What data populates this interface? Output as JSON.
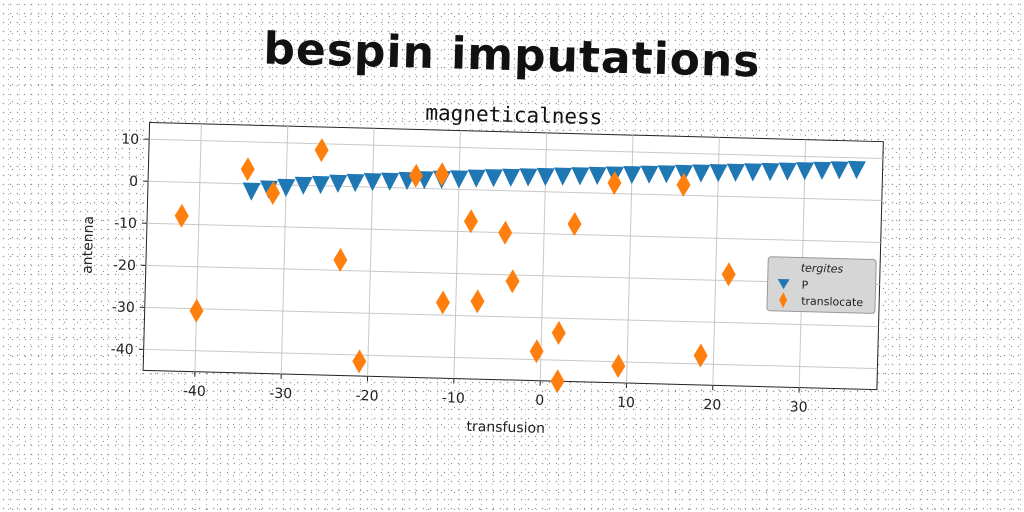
{
  "title": "bespin imputations",
  "chart_data": {
    "type": "scatter",
    "title": "magneticalness",
    "xlabel": "transfusion",
    "ylabel": "antenna",
    "xlim": [
      -46,
      39
    ],
    "ylim": [
      -45,
      14
    ],
    "xticks": [
      -40,
      -30,
      -20,
      -10,
      0,
      10,
      20,
      30
    ],
    "yticks": [
      10,
      0,
      -10,
      -20,
      -30,
      -40
    ],
    "grid": true,
    "legend": {
      "title": "tergites",
      "position": "right"
    },
    "series": [
      {
        "name": "P",
        "marker": "triangle-down",
        "color": "#1f77b4",
        "x": [
          -34.0,
          -32.0,
          -30.0,
          -28.0,
          -26.0,
          -24.0,
          -22.0,
          -20.0,
          -18.0,
          -16.0,
          -14.0,
          -12.0,
          -10.0,
          -8.0,
          -6.0,
          -4.0,
          -2.0,
          0.0,
          2.0,
          4.0,
          6.0,
          8.0,
          10.0,
          12.0,
          14.0,
          16.0,
          18.0,
          20.0,
          22.0,
          24.0,
          26.0,
          28.0,
          30.0,
          32.0,
          34.0,
          36.0
        ],
        "y": [
          -1.6,
          -1.0,
          -0.5,
          0.1,
          0.4,
          0.8,
          1.1,
          1.4,
          1.6,
          1.9,
          2.2,
          2.4,
          2.6,
          2.9,
          3.1,
          3.3,
          3.5,
          3.7,
          3.9,
          4.1,
          4.3,
          4.5,
          4.7,
          4.9,
          5.1,
          5.3,
          5.5,
          5.7,
          5.9,
          6.1,
          6.3,
          6.5,
          6.7,
          6.9,
          7.1,
          7.3
        ]
      },
      {
        "name": "translocate",
        "marker": "thin_diamond",
        "color": "#ff7f0e",
        "x": [
          -34.5,
          -31.5,
          -26.0,
          -23.5,
          -21.0,
          -15.0,
          -12.0,
          -11.5,
          -8.5,
          -7.5,
          -4.5,
          -3.5,
          -0.5,
          2.0,
          2.0,
          3.5,
          8.0,
          9.0,
          16.0,
          18.5,
          21.5,
          -42.0,
          -40.0
        ],
        "y": [
          3.5,
          -2.0,
          8.5,
          -17.5,
          -41.5,
          3.0,
          3.5,
          -27.0,
          -7.5,
          -26.5,
          -10.0,
          -21.5,
          -38.0,
          -33.5,
          -45.0,
          -7.5,
          2.5,
          -41.0,
          2.5,
          -38.0,
          -18.5,
          -8.0,
          -30.5
        ]
      }
    ]
  }
}
